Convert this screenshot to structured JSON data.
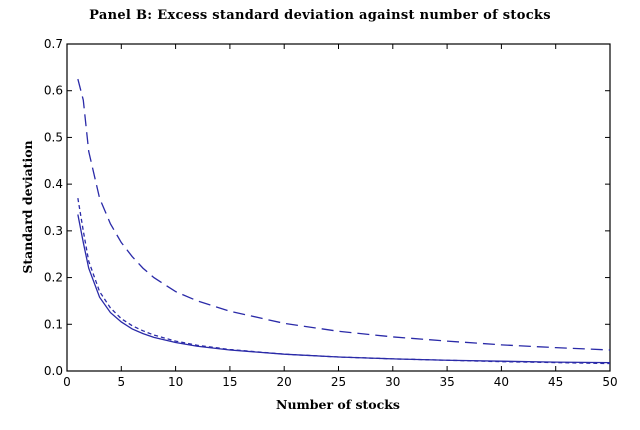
{
  "chart_data": {
    "type": "line",
    "title": "Panel B: Excess standard deviation against number of stocks",
    "xlabel": "Number of stocks",
    "ylabel": "Standard deviation",
    "xlim": [
      0,
      50
    ],
    "ylim": [
      0,
      0.7
    ],
    "xticks": [
      "0",
      "5",
      "10",
      "15",
      "20",
      "25",
      "30",
      "35",
      "40",
      "45",
      "50"
    ],
    "yticks": [
      "0.0",
      "0.1",
      "0.2",
      "0.3",
      "0.4",
      "0.5",
      "0.6",
      "0.7"
    ],
    "grid": false,
    "line_color": "#2a2aa8",
    "series": [
      {
        "style": "dashed-long",
        "x": [
          1,
          1.5,
          2,
          3,
          4,
          5,
          6,
          7,
          8,
          10,
          12,
          15,
          20,
          25,
          30,
          35,
          40,
          45,
          50
        ],
        "y": [
          0.625,
          0.58,
          0.47,
          0.37,
          0.315,
          0.275,
          0.245,
          0.22,
          0.2,
          0.17,
          0.15,
          0.128,
          0.102,
          0.085,
          0.073,
          0.064,
          0.056,
          0.05,
          0.045
        ]
      },
      {
        "style": "dashed-short",
        "x": [
          1,
          1.5,
          2,
          3,
          4,
          5,
          6,
          7,
          8,
          10,
          12,
          15,
          20,
          25,
          30,
          35,
          40,
          45,
          50
        ],
        "y": [
          0.37,
          0.3,
          0.235,
          0.17,
          0.135,
          0.112,
          0.097,
          0.086,
          0.077,
          0.064,
          0.055,
          0.046,
          0.036,
          0.03,
          0.026,
          0.023,
          0.02,
          0.018,
          0.016
        ]
      },
      {
        "style": "solid",
        "x": [
          1,
          1.5,
          2,
          3,
          4,
          5,
          6,
          7,
          8,
          10,
          12,
          15,
          20,
          25,
          30,
          35,
          40,
          45,
          50
        ],
        "y": [
          0.335,
          0.275,
          0.22,
          0.158,
          0.125,
          0.105,
          0.09,
          0.08,
          0.072,
          0.061,
          0.053,
          0.045,
          0.036,
          0.03,
          0.026,
          0.023,
          0.021,
          0.019,
          0.018
        ]
      }
    ]
  }
}
